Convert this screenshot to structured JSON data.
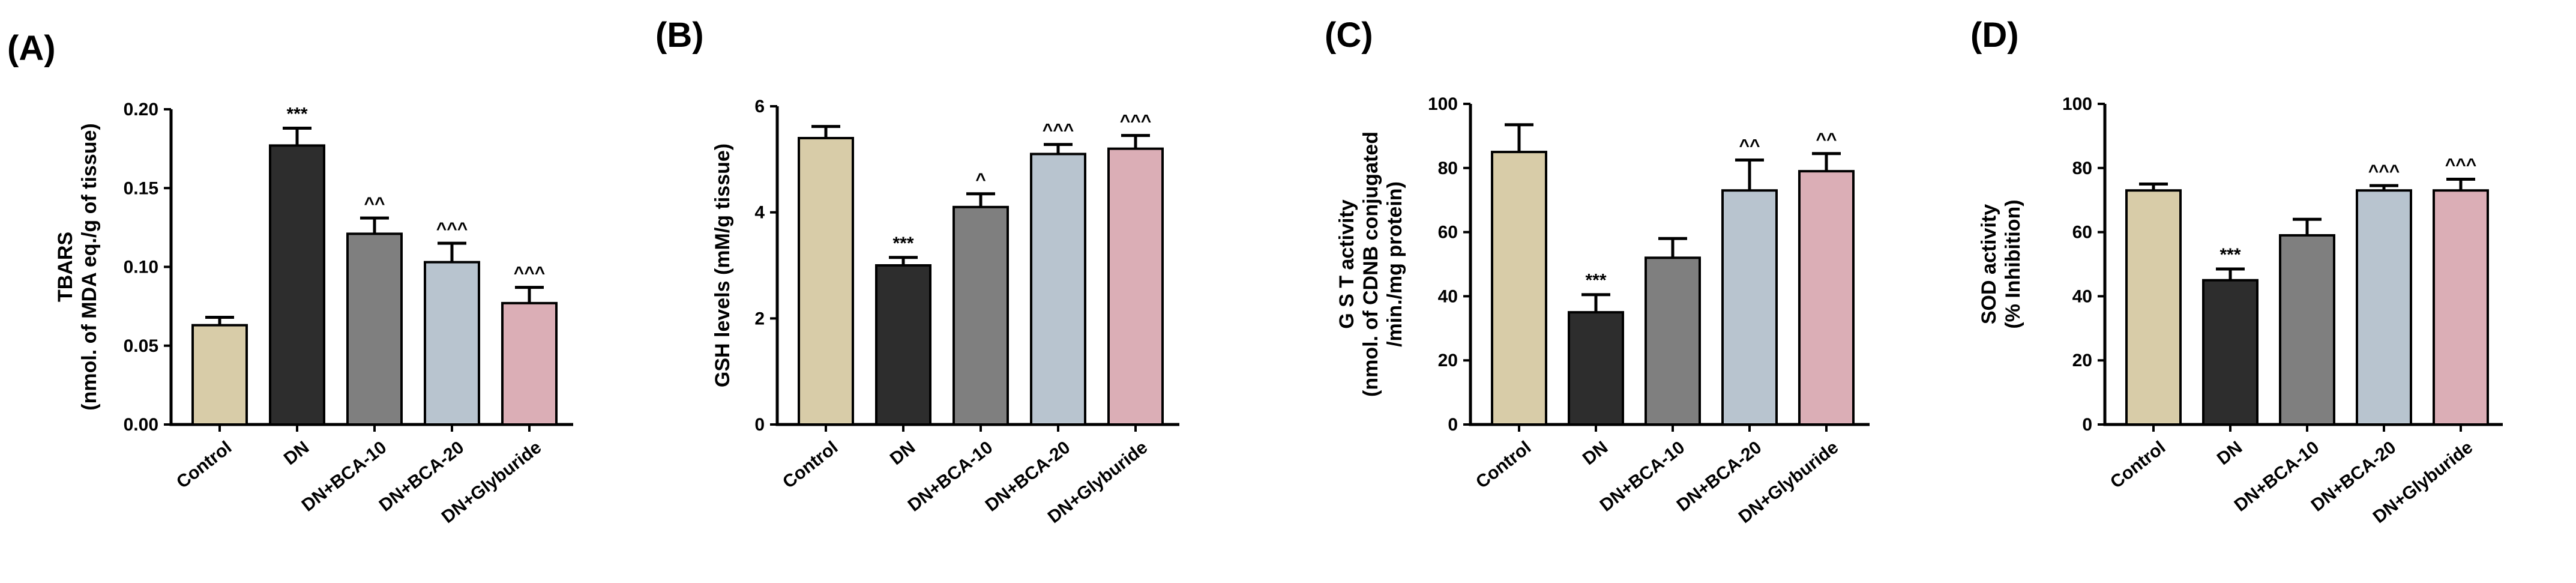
{
  "colors": {
    "Control": "#d8cca8",
    "DN": "#2d2d2d",
    "DN+BCA-10": "#7f7f7f",
    "DN+BCA-20": "#b8c4cf",
    "DN+Glyburide": "#dbaeb6"
  },
  "chart_data": [
    {
      "type": "bar",
      "panel": "(A)",
      "categories": [
        "Control",
        "DN",
        "DN+BCA-10",
        "DN+BCA-20",
        "DN+Glyburide"
      ],
      "values": [
        0.063,
        0.177,
        0.121,
        0.103,
        0.077
      ],
      "errors": [
        0.005,
        0.011,
        0.01,
        0.012,
        0.01
      ],
      "significance": [
        "",
        "***",
        "^^",
        "^^^",
        "^^^"
      ],
      "ylabel": [
        "TBARS",
        "(nmol. of MDA eq./g of tissue)"
      ],
      "ylim": [
        0,
        0.2
      ],
      "yticks": [
        0.0,
        0.05,
        0.1,
        0.15,
        0.2
      ],
      "ytick_labels": [
        "0.00",
        "0.05",
        "0.10",
        "0.15",
        "0.20"
      ]
    },
    {
      "type": "bar",
      "panel": "(B)",
      "categories": [
        "Control",
        "DN",
        "DN+BCA-10",
        "DN+BCA-20",
        "DN+Glyburide"
      ],
      "values": [
        5.4,
        3.0,
        4.1,
        5.1,
        5.2
      ],
      "errors": [
        0.22,
        0.15,
        0.25,
        0.18,
        0.25
      ],
      "significance": [
        "",
        "***",
        "^",
        "^^^",
        "^^^"
      ],
      "ylabel": [
        "GSH levels (mM/g tissue)"
      ],
      "ylim": [
        0,
        6
      ],
      "yticks": [
        0,
        2,
        4,
        6
      ],
      "ytick_labels": [
        "0",
        "2",
        "4",
        "6"
      ]
    },
    {
      "type": "bar",
      "panel": "(C)",
      "categories": [
        "Control",
        "DN",
        "DN+BCA-10",
        "DN+BCA-20",
        "DN+Glyburide"
      ],
      "values": [
        85,
        35,
        52,
        73,
        79
      ],
      "errors": [
        8.5,
        5.5,
        6.0,
        9.5,
        5.5
      ],
      "significance": [
        "",
        "***",
        "",
        "^^",
        "^^"
      ],
      "ylabel": [
        "G S T activity",
        "(nmol. of CDNB conjugated",
        "/min./mg protein)"
      ],
      "ylim": [
        0,
        100
      ],
      "yticks": [
        0,
        20,
        40,
        60,
        80,
        100
      ],
      "ytick_labels": [
        "0",
        "20",
        "40",
        "60",
        "80",
        "100"
      ]
    },
    {
      "type": "bar",
      "panel": "(D)",
      "categories": [
        "Control",
        "DN",
        "DN+BCA-10",
        "DN+BCA-20",
        "DN+Glyburide"
      ],
      "values": [
        73,
        45,
        59,
        73,
        73
      ],
      "errors": [
        2,
        3.5,
        5,
        1.5,
        3.5
      ],
      "significance": [
        "",
        "***",
        "",
        "^^^",
        "^^^"
      ],
      "ylabel": [
        "SOD activity",
        "(% Inhibition)"
      ],
      "ylim": [
        0,
        100
      ],
      "yticks": [
        0,
        20,
        40,
        60,
        80,
        100
      ],
      "ytick_labels": [
        "0",
        "20",
        "40",
        "60",
        "80",
        "100"
      ]
    }
  ]
}
